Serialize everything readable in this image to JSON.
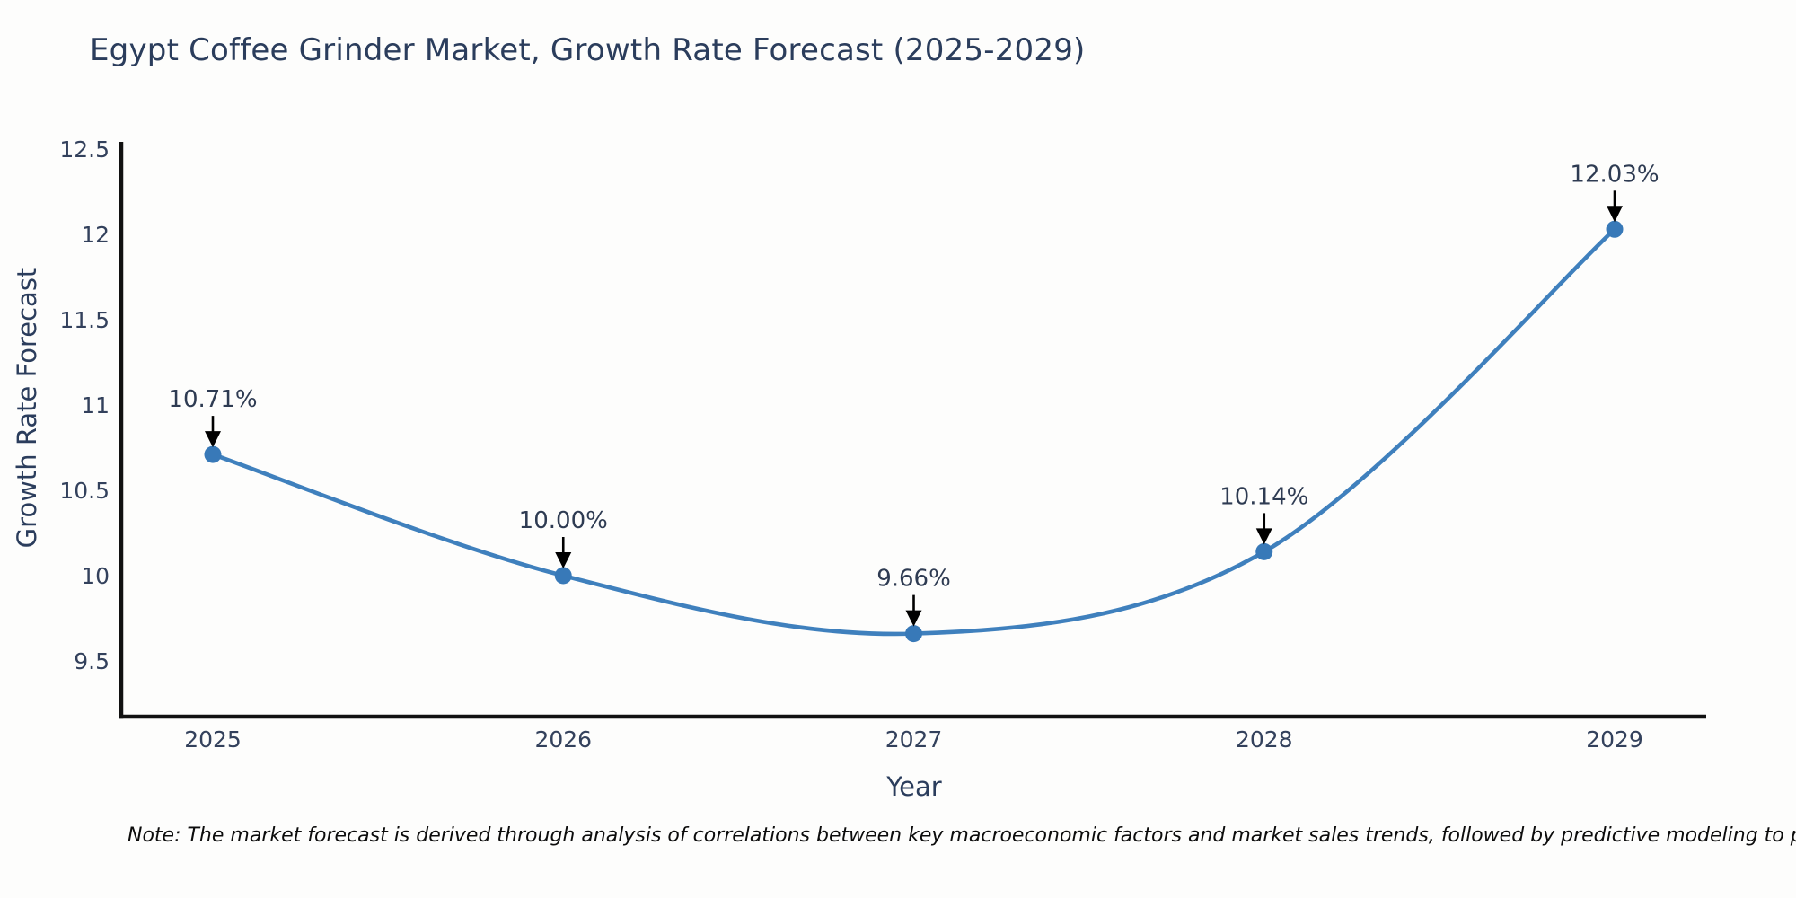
{
  "title": "Egypt Coffee Grinder Market, Growth Rate Forecast (2025-2029)",
  "note": "Note: The market forecast is derived through analysis of correlations between key macroeconomic factors and market sales trends, followed by predictive modeling to project future sales.",
  "chart_data": {
    "type": "line",
    "title": "Egypt Coffee Grinder Market, Growth Rate Forecast (2025-2029)",
    "xlabel": "Year",
    "ylabel": "Growth Rate Forecast",
    "categories": [
      "2025",
      "2026",
      "2027",
      "2028",
      "2029"
    ],
    "series": [
      {
        "name": "Growth Rate Forecast",
        "values": [
          10.71,
          10.0,
          9.66,
          10.14,
          12.03
        ],
        "point_labels": [
          "10.71%",
          "10.00%",
          "9.66%",
          "10.14%",
          "12.03%"
        ]
      }
    ],
    "yticks": [
      "9.5",
      "10",
      "10.5",
      "11",
      "11.5",
      "12",
      "12.5"
    ],
    "ytick_values": [
      9.5,
      10,
      10.5,
      11,
      11.5,
      12,
      12.5
    ],
    "ylim": [
      9.15,
      12.55
    ],
    "grid": false,
    "legend_position": "none",
    "line_style": "spline",
    "annotation_arrows": true,
    "colors": {
      "line": "#3f80bd",
      "marker": "#3879b8",
      "axis": "#111111",
      "title_text": "#2b3d5c",
      "tick_text": "#33415c",
      "annotation_text": "#2e3b52",
      "arrow": "#000000",
      "background": "#fdfdfc"
    }
  }
}
